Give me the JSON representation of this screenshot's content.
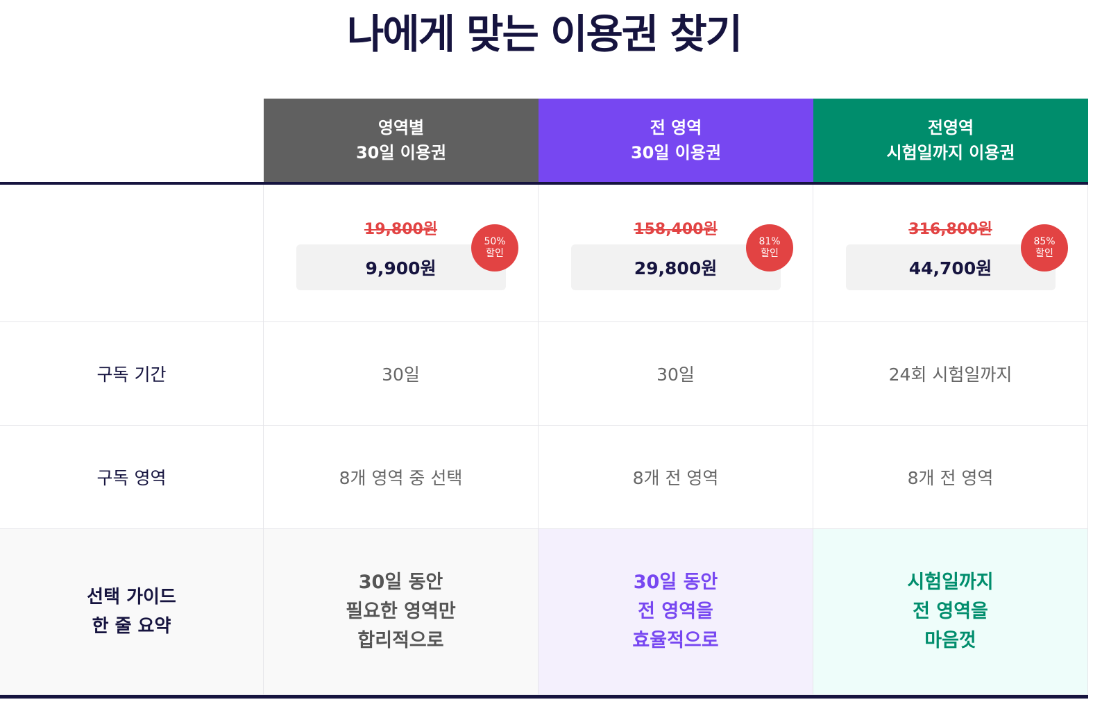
{
  "title": "나에게 맞는 이용권 찾기",
  "colors": {
    "plan1": "#606060",
    "plan2": "#7747f1",
    "plan3": "#008d6c",
    "discount": "#e24343",
    "dark": "#16143f"
  },
  "plans": [
    {
      "name_line1": "영역별",
      "name_line2": "30일 이용권",
      "original_price": "19,800원",
      "price": "9,900원",
      "discount_pct": "50%",
      "discount_word": "할인",
      "period": "30일",
      "scope": "8개 영역 중 선택",
      "guide": [
        "30일 동안",
        "필요한 영역만",
        "합리적으로"
      ]
    },
    {
      "name_line1": "전 영역",
      "name_line2": "30일 이용권",
      "original_price": "158,400원",
      "price": "29,800원",
      "discount_pct": "81%",
      "discount_word": "할인",
      "period": "30일",
      "scope": "8개 전 영역",
      "guide": [
        "30일 동안",
        "전 영역을",
        "효율적으로"
      ]
    },
    {
      "name_line1": "전영역",
      "name_line2": "시험일까지 이용권",
      "original_price": "316,800원",
      "price": "44,700원",
      "discount_pct": "85%",
      "discount_word": "할인",
      "period": "24회 시험일까지",
      "scope": "8개 전 영역",
      "guide": [
        "시험일까지",
        "전 영역을",
        "마음껏"
      ]
    }
  ],
  "rows": {
    "period_label": "구독 기간",
    "scope_label": "구독 영역",
    "guide_label_line1": "선택 가이드",
    "guide_label_line2": "한 줄 요약"
  }
}
